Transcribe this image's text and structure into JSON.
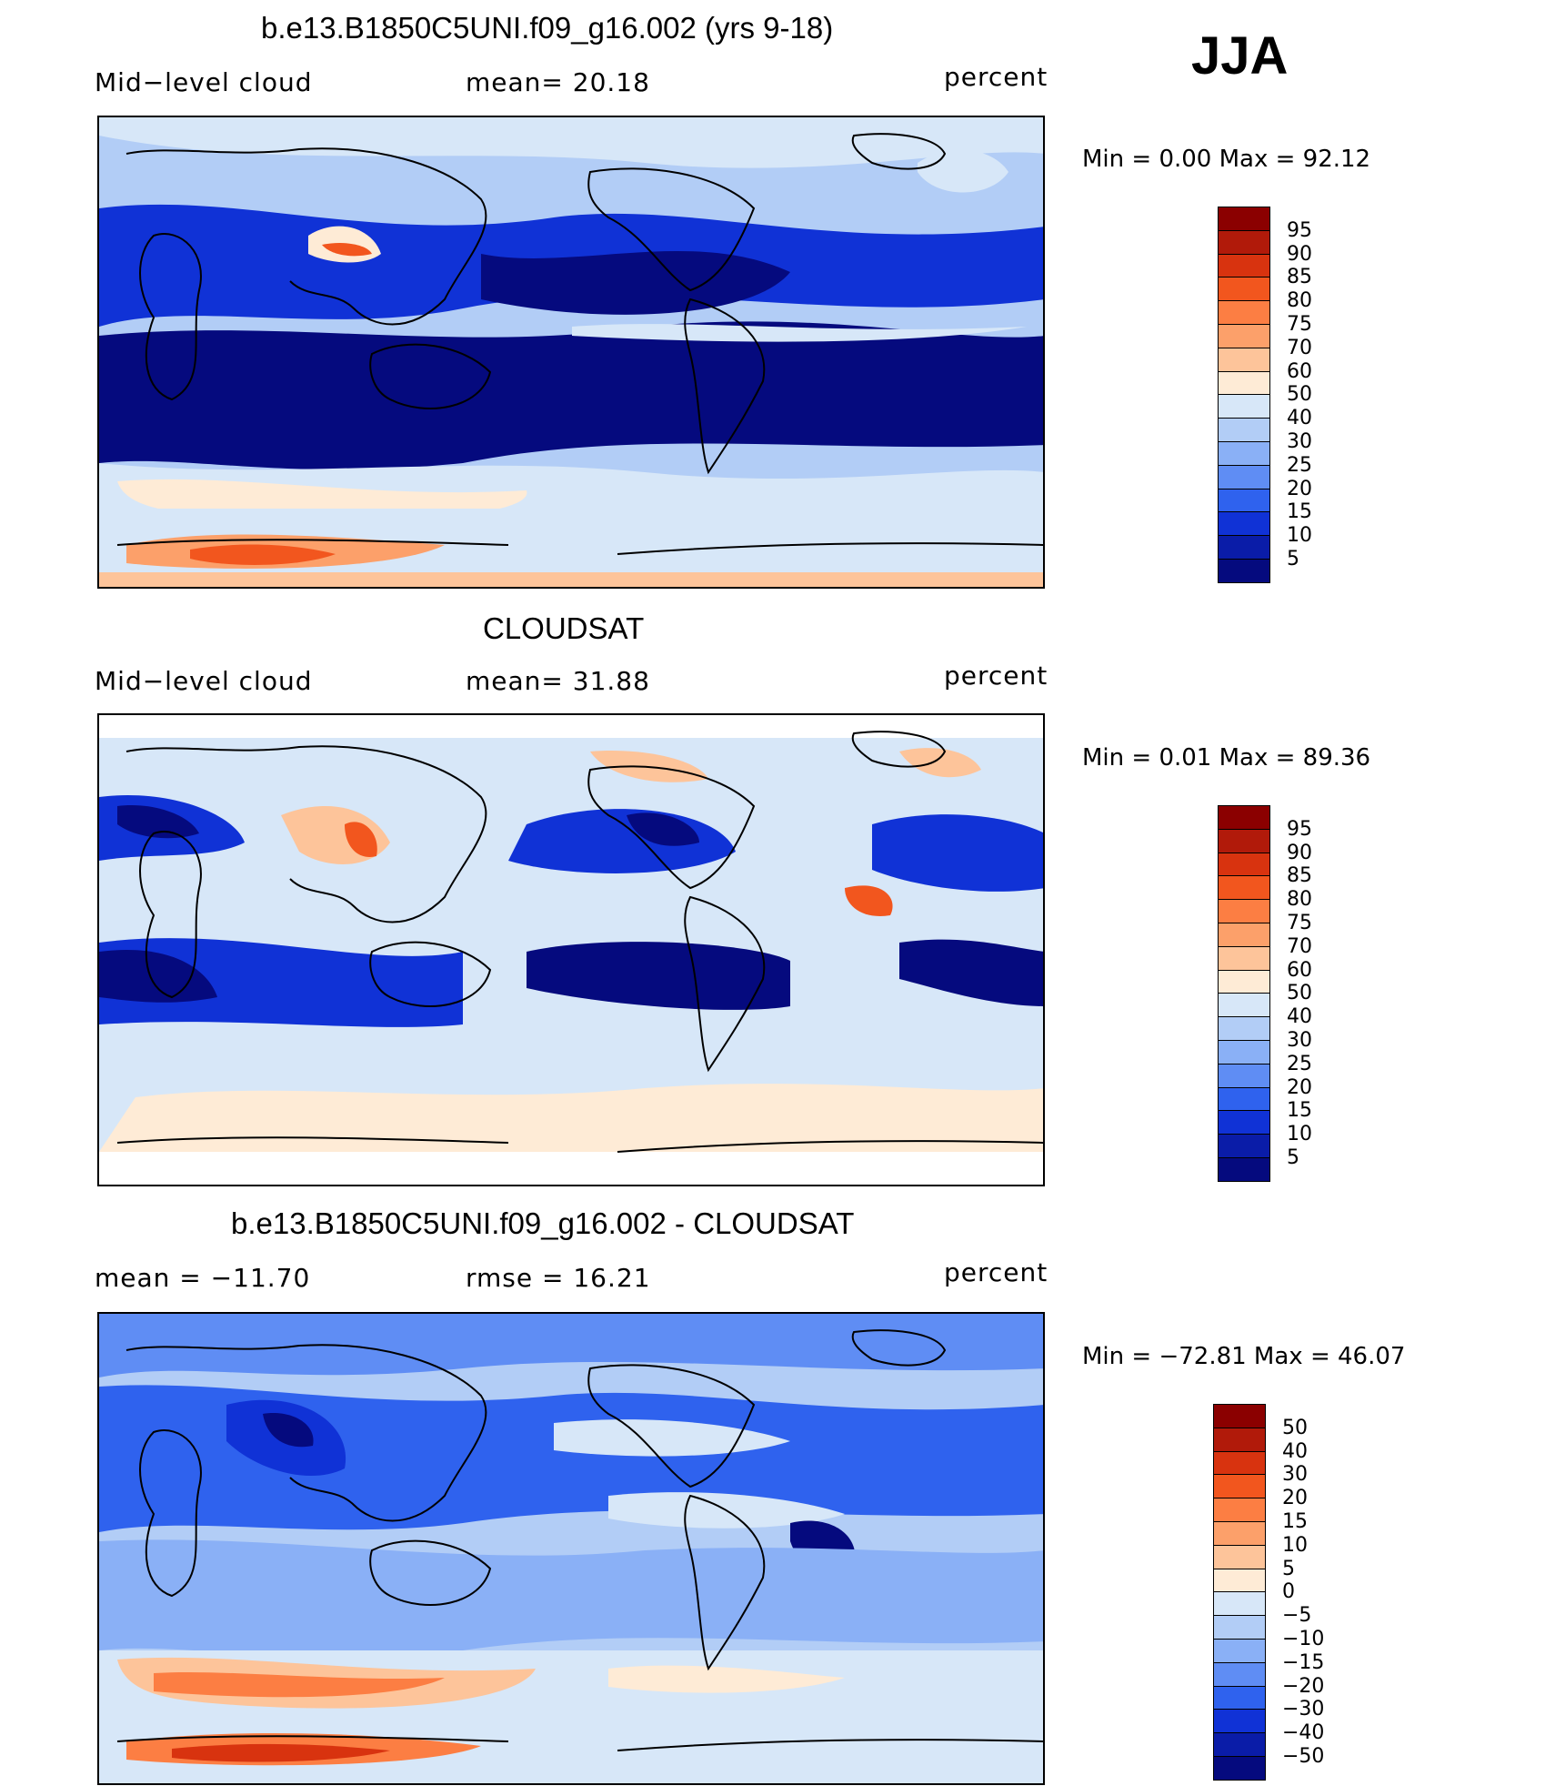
{
  "season": "JJA",
  "panels": [
    {
      "title": "b.e13.B1850C5UNI.f09_g16.002 (yrs 9-18)",
      "left_label": "Mid−level  cloud",
      "center_label": "mean=   20.18",
      "units": "percent",
      "minmax": "Min  =      0.00  Max  =    92.12",
      "colorbar": {
        "labels": [
          "95",
          "90",
          "85",
          "80",
          "75",
          "70",
          "60",
          "50",
          "40",
          "30",
          "25",
          "20",
          "15",
          "10",
          "5"
        ],
        "colors": [
          "#8b0000",
          "#b11a0a",
          "#d8330f",
          "#f2561e",
          "#fc7e43",
          "#fca06a",
          "#fdc49a",
          "#feebd6",
          "#d7e7f8",
          "#b2cdf6",
          "#8ab0f6",
          "#5f8df4",
          "#2f62ee",
          "#1032d6",
          "#0a1ca8",
          "#050a7e"
        ]
      }
    },
    {
      "title": "CLOUDSAT",
      "left_label": "Mid−level  cloud",
      "center_label": "mean=   31.88",
      "units": "percent",
      "minmax": "Min  =      0.01  Max  =    89.36",
      "colorbar": {
        "labels": [
          "95",
          "90",
          "85",
          "80",
          "75",
          "70",
          "60",
          "50",
          "40",
          "30",
          "25",
          "20",
          "15",
          "10",
          "5"
        ],
        "colors": [
          "#8b0000",
          "#b11a0a",
          "#d8330f",
          "#f2561e",
          "#fc7e43",
          "#fca06a",
          "#fdc49a",
          "#feebd6",
          "#d7e7f8",
          "#b2cdf6",
          "#8ab0f6",
          "#5f8df4",
          "#2f62ee",
          "#1032d6",
          "#0a1ca8",
          "#050a7e"
        ]
      }
    },
    {
      "title": "b.e13.B1850C5UNI.f09_g16.002 - CLOUDSAT",
      "left_label": "mean  =  −11.70",
      "center_label": "rmse  =    16.21",
      "units": "percent",
      "minmax": "Min  = −72.81  Max  =    46.07",
      "colorbar": {
        "labels": [
          "50",
          "40",
          "30",
          "20",
          "15",
          "10",
          "5",
          "0",
          "−5",
          "−10",
          "−15",
          "−20",
          "−30",
          "−40",
          "−50"
        ],
        "colors": [
          "#8b0000",
          "#b11a0a",
          "#d8330f",
          "#f2561e",
          "#fc7e43",
          "#fca06a",
          "#fdc49a",
          "#feebd6",
          "#d7e7f8",
          "#b2cdf6",
          "#8ab0f6",
          "#5f8df4",
          "#2f62ee",
          "#1032d6",
          "#0a1ca8",
          "#050a7e"
        ]
      }
    }
  ]
}
